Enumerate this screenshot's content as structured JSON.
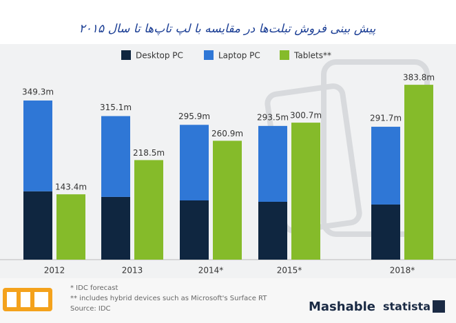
{
  "chart_data": {
    "type": "stacked_bar_with_pair",
    "title": "پیش بینی فروش تبلت‌ها در مقایسه با لپ تاپ‌ها تا سال ۲۰۱۵",
    "categories": [
      "2012",
      "2013",
      "2014*",
      "2015*",
      "2018*"
    ],
    "series": [
      {
        "name": "Desktop PC",
        "color": "#0f2640",
        "stack": "pc",
        "values": [
          150,
          137.7,
          130,
          127,
          121
        ]
      },
      {
        "name": "Laptop PC",
        "color": "#2f77d6",
        "stack": "pc",
        "values": [
          199.3,
          177.4,
          165.9,
          166.5,
          170.7
        ]
      },
      {
        "name": "Tablets**",
        "color": "#85bb2a",
        "stack": "tablets",
        "values": [
          143.4,
          218.5,
          260.9,
          300.7,
          383.8
        ],
        "value_labels": [
          "143.4m",
          "218.5m",
          "260.9m",
          "300.7m",
          "383.8m"
        ]
      }
    ],
    "pc_totals": {
      "values": [
        349.3,
        315.1,
        295.9,
        293.5,
        291.7
      ],
      "value_labels": [
        "349.3m",
        "315.1m",
        "295.9m",
        "293.5m",
        "291.7m"
      ]
    },
    "ylim": [
      0,
      400
    ],
    "footnotes": [
      "* IDC forecast",
      "** includes hybrid devices such as Microsoft's Surface RT",
      "Source: IDC"
    ],
    "brands": [
      "Mashable",
      "statista"
    ]
  }
}
